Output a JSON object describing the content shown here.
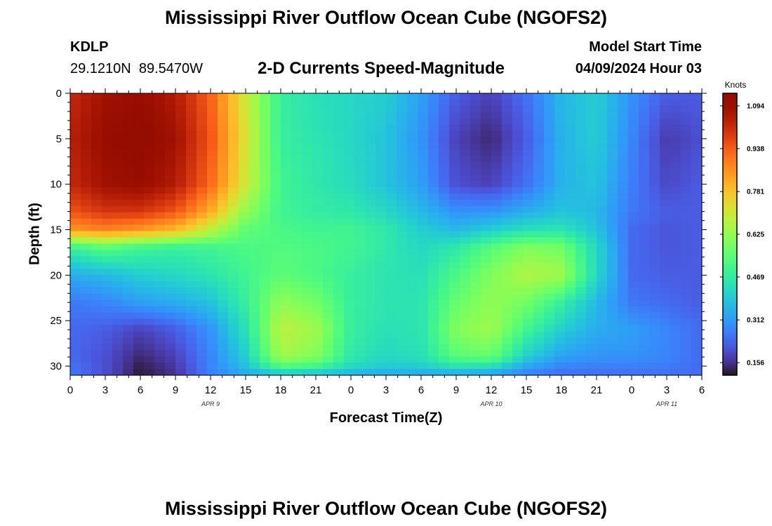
{
  "header": {
    "title": "Mississippi River Outflow Ocean Cube (NGOFS2)",
    "station_id": "KDLP",
    "coordinates": "29.1210N  89.5470W",
    "subtitle": "2-D Currents Speed-Magnitude",
    "model_start_label": "Model Start Time",
    "model_start_value": "04/09/2024 Hour 03"
  },
  "footer": {
    "title": "Mississippi River Outflow Ocean Cube (NGOFS2)"
  },
  "chart_data": {
    "type": "heatmap",
    "xlabel": "Forecast Time(Z)",
    "ylabel": "Depth (ft)",
    "x_range_hours": [
      0,
      54
    ],
    "y_range": [
      0,
      31
    ],
    "y_inverted": true,
    "x_tick_labels": [
      "0",
      "3",
      "6",
      "9",
      "12",
      "15",
      "18",
      "21",
      "0",
      "3",
      "6",
      "9",
      "12",
      "15",
      "18",
      "21",
      "0",
      "3",
      "6"
    ],
    "y_ticks": [
      0,
      5,
      10,
      15,
      20,
      25,
      30
    ],
    "date_labels": [
      {
        "label": "APR 9",
        "hour": 12
      },
      {
        "label": "APR 10",
        "hour": 36
      },
      {
        "label": "APR 11",
        "hour": 51
      }
    ],
    "colorbar": {
      "label": "Knots",
      "min": 0.11,
      "max": 1.14,
      "ticks": [
        1.094,
        0.938,
        0.781,
        0.625,
        0.469,
        0.312,
        0.156
      ],
      "colormap": "turbo"
    },
    "grid_hours": [
      0,
      3,
      6,
      9,
      12,
      15,
      18,
      21,
      24,
      27,
      30,
      33,
      36,
      39,
      42,
      45,
      48,
      51,
      54
    ],
    "grid_depths": [
      0,
      5,
      10,
      13,
      15,
      17,
      20,
      23,
      26,
      29,
      30.5,
      31
    ],
    "values": [
      [
        1.02,
        1.08,
        1.1,
        1.05,
        0.93,
        0.7,
        0.48,
        0.44,
        0.42,
        0.4,
        0.32,
        0.22,
        0.18,
        0.25,
        0.36,
        0.4,
        0.3,
        0.22,
        0.22
      ],
      [
        1.04,
        1.1,
        1.12,
        1.08,
        0.95,
        0.72,
        0.48,
        0.45,
        0.42,
        0.38,
        0.3,
        0.18,
        0.14,
        0.22,
        0.35,
        0.4,
        0.28,
        0.17,
        0.2
      ],
      [
        1.02,
        1.08,
        1.1,
        1.05,
        0.92,
        0.7,
        0.5,
        0.46,
        0.43,
        0.38,
        0.32,
        0.2,
        0.18,
        0.25,
        0.35,
        0.38,
        0.27,
        0.19,
        0.22
      ],
      [
        0.95,
        1.0,
        1.0,
        0.95,
        0.82,
        0.62,
        0.5,
        0.47,
        0.46,
        0.42,
        0.36,
        0.3,
        0.3,
        0.34,
        0.38,
        0.36,
        0.26,
        0.22,
        0.22
      ],
      [
        0.85,
        0.88,
        0.85,
        0.8,
        0.68,
        0.55,
        0.52,
        0.5,
        0.5,
        0.46,
        0.4,
        0.36,
        0.4,
        0.44,
        0.45,
        0.38,
        0.24,
        0.21,
        0.22
      ],
      [
        0.48,
        0.54,
        0.5,
        0.48,
        0.5,
        0.52,
        0.53,
        0.52,
        0.5,
        0.46,
        0.42,
        0.46,
        0.54,
        0.6,
        0.58,
        0.42,
        0.24,
        0.21,
        0.22
      ],
      [
        0.34,
        0.36,
        0.4,
        0.42,
        0.45,
        0.5,
        0.55,
        0.52,
        0.48,
        0.45,
        0.44,
        0.52,
        0.6,
        0.66,
        0.64,
        0.42,
        0.24,
        0.22,
        0.22
      ],
      [
        0.26,
        0.28,
        0.32,
        0.34,
        0.38,
        0.48,
        0.62,
        0.58,
        0.48,
        0.45,
        0.45,
        0.56,
        0.62,
        0.58,
        0.48,
        0.36,
        0.26,
        0.24,
        0.22
      ],
      [
        0.24,
        0.22,
        0.18,
        0.22,
        0.3,
        0.44,
        0.68,
        0.64,
        0.48,
        0.44,
        0.45,
        0.6,
        0.64,
        0.5,
        0.4,
        0.34,
        0.32,
        0.28,
        0.24
      ],
      [
        0.24,
        0.2,
        0.14,
        0.18,
        0.28,
        0.4,
        0.64,
        0.6,
        0.46,
        0.42,
        0.44,
        0.54,
        0.56,
        0.4,
        0.32,
        0.3,
        0.3,
        0.28,
        0.24
      ],
      [
        0.26,
        0.2,
        0.12,
        0.16,
        0.28,
        0.36,
        0.48,
        0.46,
        0.4,
        0.38,
        0.38,
        0.4,
        0.38,
        0.3,
        0.26,
        0.26,
        0.26,
        0.26,
        0.24
      ],
      [
        0.26,
        0.2,
        0.12,
        0.16,
        0.26,
        0.3,
        0.3,
        0.3,
        0.3,
        0.28,
        0.28,
        0.28,
        0.28,
        0.26,
        0.24,
        0.24,
        0.24,
        0.24,
        0.24
      ]
    ]
  }
}
